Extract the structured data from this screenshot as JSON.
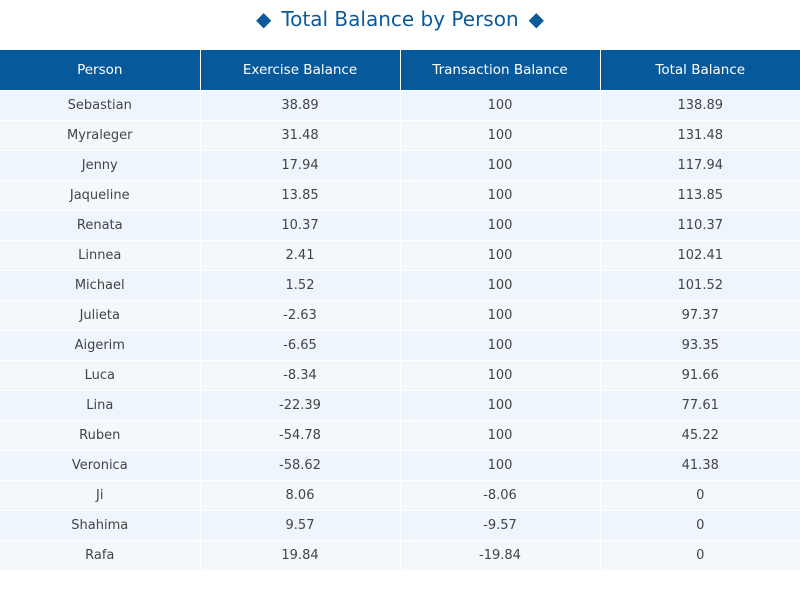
{
  "title": "Total Balance by Person",
  "title_icon": "diamond-icon",
  "accent_color": "#065a9c",
  "chart_data": {
    "type": "table",
    "title": "Total Balance by Person",
    "columns": [
      "Person",
      "Exercise Balance",
      "Transaction Balance",
      "Total Balance"
    ],
    "rows": [
      [
        "Sebastian",
        "38.89",
        "100",
        "138.89"
      ],
      [
        "Myraleger",
        "31.48",
        "100",
        "131.48"
      ],
      [
        "Jenny",
        "17.94",
        "100",
        "117.94"
      ],
      [
        "Jaqueline",
        "13.85",
        "100",
        "113.85"
      ],
      [
        "Renata",
        "10.37",
        "100",
        "110.37"
      ],
      [
        "Linnea",
        "2.41",
        "100",
        "102.41"
      ],
      [
        "Michael",
        "1.52",
        "100",
        "101.52"
      ],
      [
        "Julieta",
        "-2.63",
        "100",
        "97.37"
      ],
      [
        "Aigerim",
        "-6.65",
        "100",
        "93.35"
      ],
      [
        "Luca",
        "-8.34",
        "100",
        "91.66"
      ],
      [
        "Lina",
        "-22.39",
        "100",
        "77.61"
      ],
      [
        "Ruben",
        "-54.78",
        "100",
        "45.22"
      ],
      [
        "Veronica",
        "-58.62",
        "100",
        "41.38"
      ],
      [
        "Ji",
        "8.06",
        "-8.06",
        "0"
      ],
      [
        "Shahima",
        "9.57",
        "-9.57",
        "0"
      ],
      [
        "Rafa",
        "19.84",
        "-19.84",
        "0"
      ]
    ]
  }
}
